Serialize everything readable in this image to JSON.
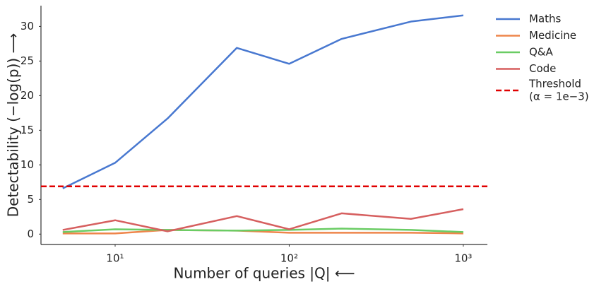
{
  "chart_data": {
    "type": "line",
    "y_label": "Detectability (−log(p)) ⟶",
    "x_label": "Number of queries |Q| ⟵",
    "x": [
      5,
      10,
      20,
      50,
      100,
      200,
      500,
      1000
    ],
    "series": [
      {
        "name": "Maths",
        "color": "#4878d0",
        "values": [
          6.6,
          10.3,
          16.7,
          26.9,
          24.6,
          28.2,
          30.7,
          31.6
        ]
      },
      {
        "name": "Medicine",
        "color": "#ee854a",
        "values": [
          0.1,
          0.1,
          0.6,
          0.5,
          0.2,
          0.2,
          0.2,
          0.1
        ]
      },
      {
        "name": "Q&A",
        "color": "#6acc64",
        "values": [
          0.3,
          0.7,
          0.6,
          0.5,
          0.6,
          0.8,
          0.6,
          0.3
        ]
      },
      {
        "name": "Code",
        "color": "#d65f5f",
        "values": [
          0.6,
          2.0,
          0.4,
          2.6,
          0.7,
          3.0,
          2.2,
          3.6
        ]
      }
    ],
    "threshold": {
      "label": [
        "Threshold",
        "(α = 1e−3)"
      ],
      "value": 6.9,
      "color": "#e00000"
    },
    "x_log": true,
    "xlim": [
      3.75,
      1375
    ],
    "xticks": [
      {
        "value": 10,
        "label": "10¹"
      },
      {
        "value": 100,
        "label": "10²"
      },
      {
        "value": 1000,
        "label": "10³"
      }
    ],
    "ylim": [
      -1.5,
      33
    ],
    "yticks": [
      0,
      5,
      10,
      15,
      20,
      25,
      30
    ],
    "grid": false,
    "legend": "outside-right"
  }
}
